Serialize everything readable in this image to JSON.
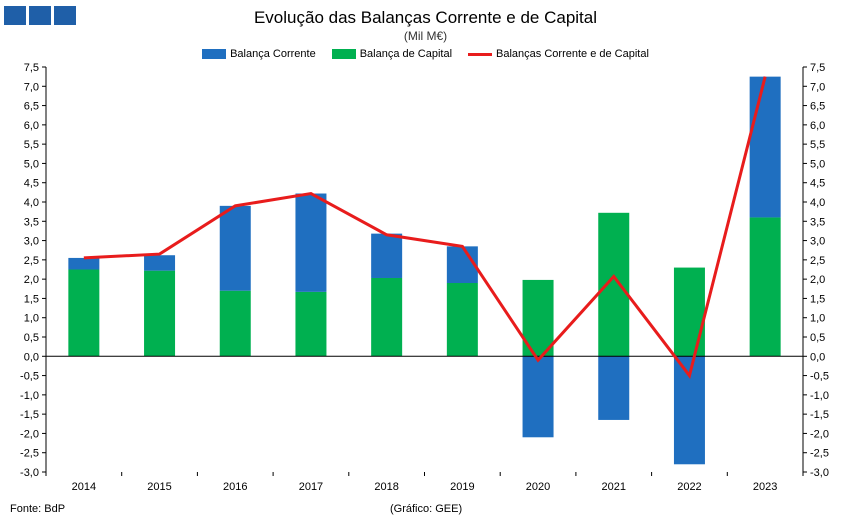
{
  "header": {
    "title": "Evolução das Balanças Corrente e de Capital",
    "subtitle": "(Mil M€)"
  },
  "footer": {
    "source": "Fonte: BdP",
    "credit": "(Gráfico: GEE)"
  },
  "colors": {
    "corrente": "#1f6fc0",
    "capital": "#00b050",
    "total": "#e81c1c",
    "logo": "#1f5fa8"
  },
  "chart_data": {
    "type": "bar",
    "title": "Evolução das Balanças Corrente e de Capital",
    "subtitle": "(Mil M€)",
    "stacked": true,
    "categories": [
      "2014",
      "2015",
      "2016",
      "2017",
      "2018",
      "2019",
      "2020",
      "2021",
      "2022",
      "2023"
    ],
    "series": [
      {
        "name": "Balança Corrente",
        "type": "bar",
        "values": [
          0.3,
          0.4,
          2.2,
          2.55,
          1.15,
          0.95,
          -2.1,
          -1.65,
          -2.8,
          3.65
        ]
      },
      {
        "name": "Balança de Capital",
        "type": "bar",
        "values": [
          2.25,
          2.22,
          1.7,
          1.67,
          2.03,
          1.9,
          1.98,
          3.72,
          2.3,
          3.6
        ]
      },
      {
        "name": "Balanças Corrente e de Capital",
        "type": "line",
        "values": [
          2.55,
          2.65,
          3.9,
          4.22,
          3.15,
          2.85,
          -0.1,
          2.07,
          -0.5,
          7.25
        ]
      }
    ],
    "ylim": [
      -3.0,
      7.5
    ],
    "yticks": [
      "7,5",
      "7,0",
      "6,5",
      "6,0",
      "5,5",
      "5,0",
      "4,5",
      "4,0",
      "3,5",
      "3,0",
      "2,5",
      "2,0",
      "1,5",
      "1,0",
      "0,5",
      "0,0",
      "-0,5",
      "-1,0",
      "-1,5",
      "-2,0",
      "-2,5",
      "-3,0"
    ],
    "secondary_axis": true,
    "grid": false,
    "legend": "top-center"
  }
}
